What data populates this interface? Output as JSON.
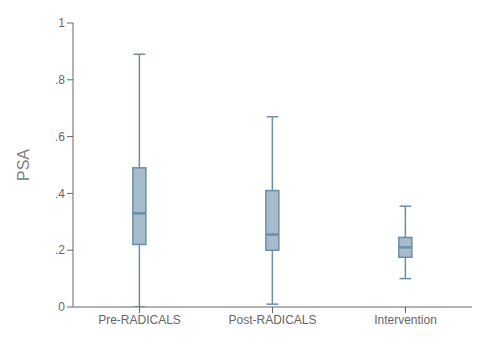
{
  "chart_data": {
    "type": "box",
    "categories": [
      "Pre-RADICALS",
      "Post-RADICALS",
      "Intervention"
    ],
    "boxes": [
      {
        "whisker_low": 0.0,
        "q1": 0.22,
        "median": 0.33,
        "q3": 0.49,
        "whisker_high": 0.89
      },
      {
        "whisker_low": 0.01,
        "q1": 0.2,
        "median": 0.255,
        "q3": 0.41,
        "whisker_high": 0.67
      },
      {
        "whisker_low": 0.1,
        "q1": 0.175,
        "median": 0.21,
        "q3": 0.245,
        "whisker_high": 0.355
      }
    ],
    "color": "#6b8fa9",
    "y_label": "PSA",
    "ylim": [
      0,
      1.0
    ],
    "yticks": [
      0,
      {
        "value": 0.2,
        "label": ".2"
      },
      {
        "value": 0.4,
        "label": ".4"
      },
      {
        "value": 0.6,
        "label": ".6"
      },
      {
        "value": 0.8,
        "label": ".8"
      },
      1
    ]
  }
}
